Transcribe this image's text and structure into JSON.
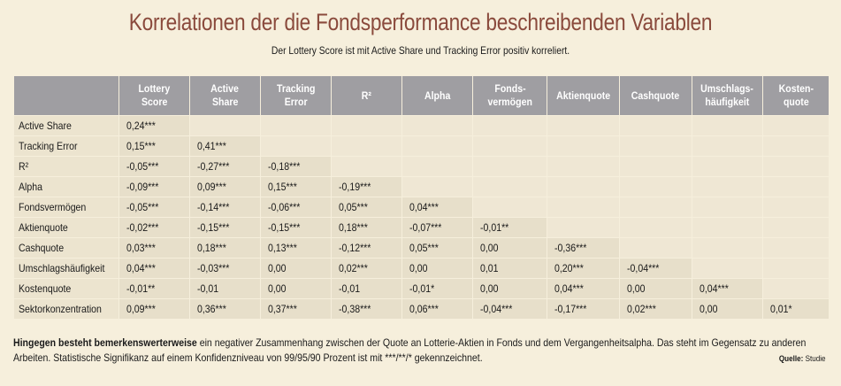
{
  "title": "Korrelationen der die Fondsperformance beschreibenden Variablen",
  "subtitle": "Der Lottery Score ist mit Active Share und Tracking Error positiv korreliert.",
  "columns": [
    [
      "Lottery",
      "Score"
    ],
    [
      "Active",
      "Share"
    ],
    [
      "Tracking",
      "Error"
    ],
    [
      "R²",
      ""
    ],
    [
      "Alpha",
      ""
    ],
    [
      "Fonds-",
      "vermögen"
    ],
    [
      "Aktienquote",
      ""
    ],
    [
      "Cashquote",
      ""
    ],
    [
      "Umschlags-",
      "häufigkeit"
    ],
    [
      "Kosten-",
      "quote"
    ]
  ],
  "rows": [
    {
      "label": "Active Share",
      "values": [
        "0,24***",
        "",
        "",
        "",
        "",
        "",
        "",
        "",
        "",
        ""
      ]
    },
    {
      "label": "Tracking  Error",
      "values": [
        "0,15***",
        "0,41***",
        "",
        "",
        "",
        "",
        "",
        "",
        "",
        ""
      ]
    },
    {
      "label": "R²",
      "values": [
        "-0,05***",
        "-0,27***",
        "-0,18***",
        "",
        "",
        "",
        "",
        "",
        "",
        ""
      ]
    },
    {
      "label": "Alpha",
      "values": [
        "-0,09***",
        "0,09***",
        "0,15***",
        "-0,19***",
        "",
        "",
        "",
        "",
        "",
        ""
      ]
    },
    {
      "label": "Fondsvermögen",
      "values": [
        "-0,05***",
        "-0,14***",
        "-0,06***",
        "0,05***",
        "0,04***",
        "",
        "",
        "",
        "",
        ""
      ]
    },
    {
      "label": "Aktienquote",
      "values": [
        "-0,02***",
        "-0,15***",
        "-0,15***",
        "0,18***",
        "-0,07***",
        "-0,01**",
        "",
        "",
        "",
        ""
      ]
    },
    {
      "label": "Cashquote",
      "values": [
        "0,03***",
        "0,18***",
        "0,13***",
        "-0,12***",
        "0,05***",
        "0,00",
        "-0,36***",
        "",
        "",
        ""
      ]
    },
    {
      "label": "Umschlagshäufigkeit",
      "values": [
        "0,04***",
        "-0,03***",
        "0,00",
        "0,02***",
        "0,00",
        "0,01",
        "0,20***",
        "-0,04***",
        "",
        ""
      ]
    },
    {
      "label": "Kostenquote",
      "values": [
        "-0,01**",
        "-0,01",
        "0,00",
        "-0,01",
        "-0,01*",
        "0,00",
        "0,04***",
        "0,00",
        "0,04***",
        ""
      ]
    },
    {
      "label": "Sektorkonzentration",
      "values": [
        "0,09***",
        "0,36***",
        "0,37***",
        "-0,38***",
        "0,06***",
        "-0,04***",
        "-0,17***",
        "0,02***",
        "0,00",
        "0,01*"
      ]
    }
  ],
  "footer": {
    "bold": "Hingegen besteht bemerkenswerterweise",
    "text": " ein negativer Zusammenhang zwischen der Quote an Lotterie-Aktien in Fonds und dem Vergangenheitsalpha. Das steht im Gegensatz zu anderen Arbeiten. Statistische Signifikanz auf einem Konfidenzniveau von 99/95/90 Prozent ist mit ***/**/* gekennzeichnet."
  },
  "source": {
    "label": "Quelle:",
    "value": "Studie"
  },
  "colors": {
    "header_bg": "#9f9ea2",
    "title": "#8a4a3c",
    "background": "#f6efdc"
  }
}
